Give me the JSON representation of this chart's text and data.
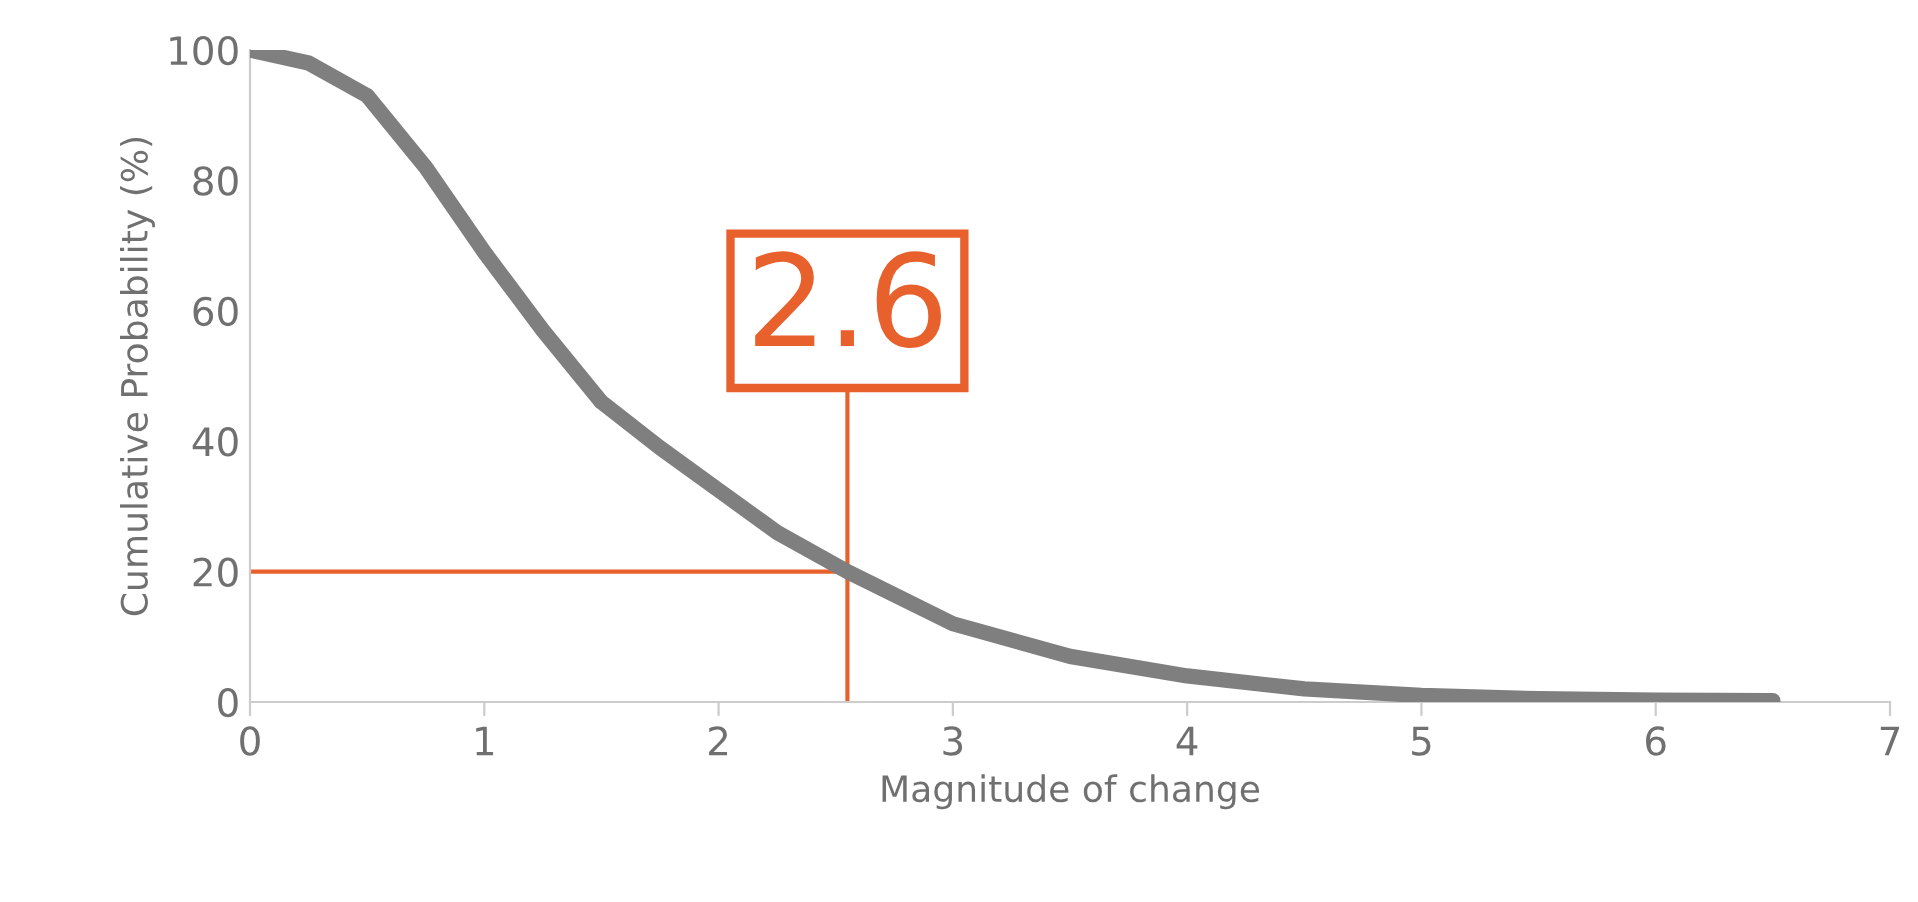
{
  "chart_data": {
    "type": "line",
    "xlabel": "Magnitude of change",
    "ylabel": "Cumulative Probability (%)",
    "series": [
      {
        "color": "#7f7f7f",
        "x": [
          0,
          0.25,
          0.5,
          0.75,
          1,
          1.25,
          1.5,
          1.75,
          2,
          2.25,
          2.55,
          3,
          3.5,
          4,
          4.5,
          5,
          5.5,
          6,
          6.5
        ],
        "values": [
          100,
          98,
          93,
          82,
          69,
          57,
          46,
          39,
          32.5,
          26,
          20,
          12,
          7,
          4,
          2,
          1,
          0.5,
          0.3,
          0.2
        ]
      }
    ],
    "xlim": [
      0,
      7
    ],
    "ylim": [
      0,
      100
    ],
    "xticks": [
      0,
      1,
      2,
      3,
      4,
      5,
      6,
      7
    ],
    "yticks": [
      0,
      20,
      40,
      60,
      80,
      100
    ],
    "ref_lines": [
      {
        "axis": "x",
        "value": 2.55,
        "color": "#e8612c"
      },
      {
        "axis": "y",
        "value": 20,
        "color": "#e8612c"
      }
    ],
    "annotations": [
      {
        "text": "2.6",
        "x": 2.55,
        "y": 20
      }
    ],
    "grid": false,
    "legend": false,
    "marker": "none",
    "line_style": "solid"
  }
}
